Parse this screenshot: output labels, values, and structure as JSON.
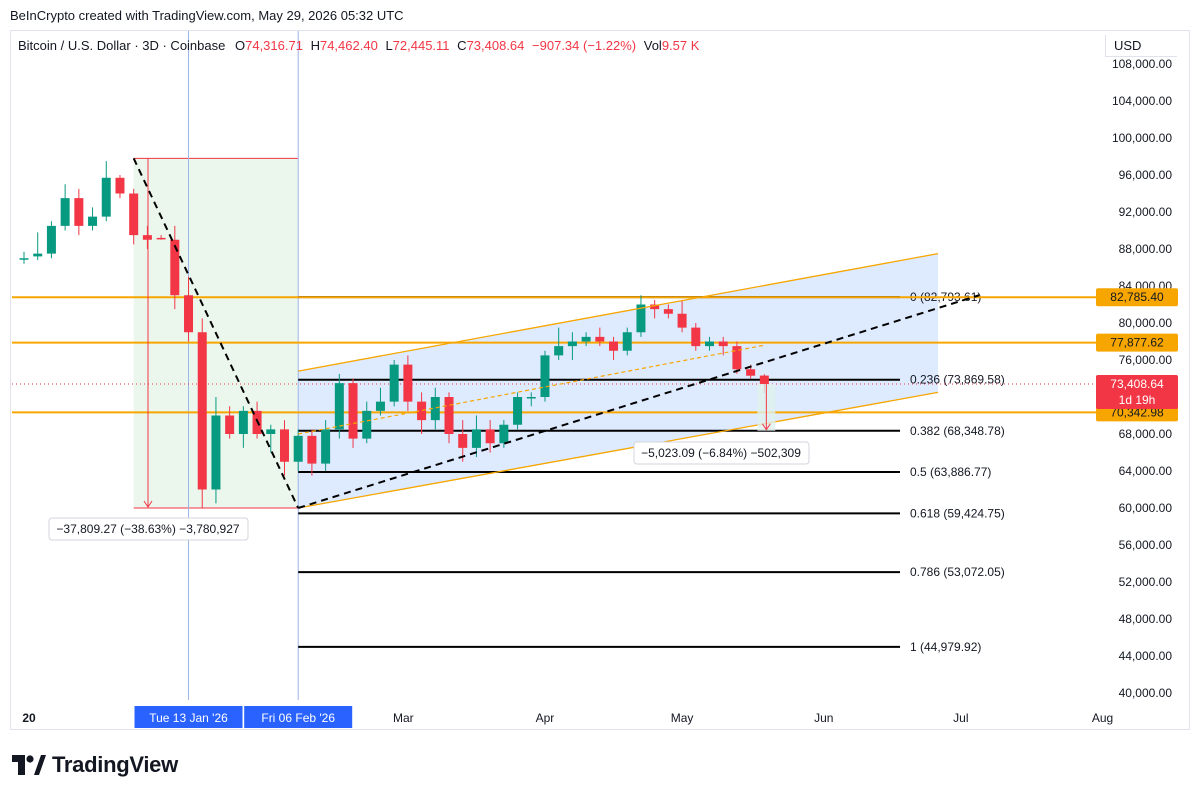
{
  "header": {
    "credit": "BeInCrypto created with TradingView.com, May 29, 2026 05:32 UTC",
    "symbol": "Bitcoin / U.S. Dollar · 3D · Coinbase",
    "o_label": "O",
    "o_value": "74,316.71",
    "h_label": "H",
    "h_value": "74,462.40",
    "l_label": "L",
    "l_value": "72,445.11",
    "c_label": "C",
    "c_value": "73,408.64",
    "change": "−907.34 (−1.22%)",
    "vol_label": "Vol",
    "vol_value": "9.57 K",
    "currency": "USD"
  },
  "footer": {
    "brand": "TradingView",
    "logo_icon": "tradingview-logo-icon"
  },
  "colors": {
    "up": "#089981",
    "down": "#f23645",
    "orange": "#f7a600",
    "channel_fill": "#d3e3fd",
    "box_fill": "#e3f3e6",
    "label_blue": "#2962ff"
  },
  "chart_data": {
    "type": "candlestick",
    "y_axis": {
      "min": 38000,
      "max": 110000,
      "ticks": [
        "40,000.00",
        "44,000.00",
        "48,000.00",
        "52,000.00",
        "56,000.00",
        "60,000.00",
        "64,000.00",
        "68,000.00",
        "72,000.00",
        "76,000.00",
        "80,000.00",
        "84,000.00",
        "88,000.00",
        "92,000.00",
        "96,000.00",
        "100,000.00",
        "104,000.00",
        "108,000.00"
      ],
      "tick_values": [
        40000,
        44000,
        48000,
        52000,
        56000,
        60000,
        64000,
        68000,
        72000,
        76000,
        80000,
        84000,
        88000,
        92000,
        96000,
        100000,
        104000,
        108000
      ]
    },
    "x_axis": {
      "labels": [
        "20",
        "Mar",
        "Apr",
        "May",
        "Jun",
        "Jul",
        "Aug"
      ],
      "label_dates": [
        "2026-01-01",
        "2026-03-01",
        "2026-04-01",
        "2026-05-01",
        "2026-06-01",
        "2026-07-01",
        "2026-08-01"
      ],
      "highlight": [
        "Tue 13 Jan '26",
        "Fri 06 Feb '26"
      ],
      "highlight_dates": [
        "2026-01-13",
        "2026-02-06"
      ]
    },
    "candles": [
      {
        "date": "2025-12-08",
        "o": 87000,
        "h": 87700,
        "l": 86400,
        "c": 87000
      },
      {
        "date": "2025-12-11",
        "o": 87200,
        "h": 89800,
        "l": 86800,
        "c": 87500
      },
      {
        "date": "2025-12-14",
        "o": 87500,
        "h": 91000,
        "l": 87000,
        "c": 90500
      },
      {
        "date": "2025-12-17",
        "o": 90500,
        "h": 95000,
        "l": 90000,
        "c": 93500
      },
      {
        "date": "2025-12-20",
        "o": 93500,
        "h": 94500,
        "l": 89500,
        "c": 90500
      },
      {
        "date": "2025-12-23",
        "o": 90500,
        "h": 92500,
        "l": 90000,
        "c": 91500
      },
      {
        "date": "2025-12-26",
        "o": 91500,
        "h": 97500,
        "l": 91000,
        "c": 95700
      },
      {
        "date": "2025-12-29",
        "o": 95700,
        "h": 96000,
        "l": 93500,
        "c": 94000
      },
      {
        "date": "2026-01-01",
        "o": 94000,
        "h": 94500,
        "l": 88500,
        "c": 89500
      },
      {
        "date": "2026-01-04",
        "o": 89500,
        "h": 90500,
        "l": 88000,
        "c": 89000
      },
      {
        "date": "2026-01-07",
        "o": 89200,
        "h": 89500,
        "l": 89000,
        "c": 89100
      },
      {
        "date": "2026-01-10",
        "o": 89000,
        "h": 90500,
        "l": 81500,
        "c": 83000
      },
      {
        "date": "2026-01-13",
        "o": 83000,
        "h": 85000,
        "l": 78000,
        "c": 79000
      },
      {
        "date": "2026-01-16",
        "o": 79000,
        "h": 80500,
        "l": 60000,
        "c": 62000
      },
      {
        "date": "2026-01-19",
        "o": 62000,
        "h": 72000,
        "l": 60500,
        "c": 70000
      },
      {
        "date": "2026-01-22",
        "o": 70000,
        "h": 71000,
        "l": 67500,
        "c": 68000
      },
      {
        "date": "2026-01-25",
        "o": 68000,
        "h": 71000,
        "l": 66500,
        "c": 70500
      },
      {
        "date": "2026-01-28",
        "o": 70500,
        "h": 71500,
        "l": 67500,
        "c": 68000
      },
      {
        "date": "2026-01-31",
        "o": 68000,
        "h": 69000,
        "l": 66000,
        "c": 68500
      },
      {
        "date": "2026-02-03",
        "o": 68500,
        "h": 69500,
        "l": 63500,
        "c": 65000
      },
      {
        "date": "2026-02-06",
        "o": 65000,
        "h": 68500,
        "l": 64000,
        "c": 67800
      },
      {
        "date": "2026-02-09",
        "o": 67800,
        "h": 68500,
        "l": 63500,
        "c": 64800
      },
      {
        "date": "2026-02-12",
        "o": 64800,
        "h": 69500,
        "l": 64000,
        "c": 68500
      },
      {
        "date": "2026-02-15",
        "o": 68500,
        "h": 74500,
        "l": 67500,
        "c": 73500
      },
      {
        "date": "2026-02-18",
        "o": 73500,
        "h": 74000,
        "l": 66500,
        "c": 67500
      },
      {
        "date": "2026-02-21",
        "o": 67500,
        "h": 71500,
        "l": 67000,
        "c": 70500
      },
      {
        "date": "2026-02-24",
        "o": 70500,
        "h": 73000,
        "l": 70000,
        "c": 71500
      },
      {
        "date": "2026-02-27",
        "o": 71500,
        "h": 76000,
        "l": 71000,
        "c": 75500
      },
      {
        "date": "2026-03-02",
        "o": 75500,
        "h": 76500,
        "l": 70500,
        "c": 71500
      },
      {
        "date": "2026-03-05",
        "o": 71500,
        "h": 72500,
        "l": 68000,
        "c": 69500
      },
      {
        "date": "2026-03-08",
        "o": 69500,
        "h": 73000,
        "l": 68500,
        "c": 72000
      },
      {
        "date": "2026-03-11",
        "o": 72000,
        "h": 72500,
        "l": 67000,
        "c": 68000
      },
      {
        "date": "2026-03-14",
        "o": 68000,
        "h": 69500,
        "l": 65000,
        "c": 66500
      },
      {
        "date": "2026-03-17",
        "o": 66500,
        "h": 70000,
        "l": 65500,
        "c": 68500
      },
      {
        "date": "2026-03-20",
        "o": 68500,
        "h": 69500,
        "l": 66000,
        "c": 67000
      },
      {
        "date": "2026-03-23",
        "o": 67000,
        "h": 69500,
        "l": 66500,
        "c": 69000
      },
      {
        "date": "2026-03-26",
        "o": 69000,
        "h": 72500,
        "l": 68500,
        "c": 72000
      },
      {
        "date": "2026-03-29",
        "o": 72000,
        "h": 72500,
        "l": 71000,
        "c": 72000
      },
      {
        "date": "2026-04-01",
        "o": 72000,
        "h": 77000,
        "l": 71500,
        "c": 76500
      },
      {
        "date": "2026-04-04",
        "o": 76500,
        "h": 79500,
        "l": 76000,
        "c": 77500
      },
      {
        "date": "2026-04-07",
        "o": 77500,
        "h": 79000,
        "l": 76000,
        "c": 78000
      },
      {
        "date": "2026-04-10",
        "o": 78000,
        "h": 79000,
        "l": 77500,
        "c": 78500
      },
      {
        "date": "2026-04-13",
        "o": 78500,
        "h": 79500,
        "l": 77500,
        "c": 78000
      },
      {
        "date": "2026-04-16",
        "o": 78000,
        "h": 78500,
        "l": 76000,
        "c": 77000
      },
      {
        "date": "2026-04-19",
        "o": 77000,
        "h": 79500,
        "l": 76500,
        "c": 79000
      },
      {
        "date": "2026-04-22",
        "o": 79000,
        "h": 83000,
        "l": 78500,
        "c": 82000
      },
      {
        "date": "2026-04-25",
        "o": 82000,
        "h": 82500,
        "l": 80500,
        "c": 81500
      },
      {
        "date": "2026-04-28",
        "o": 81500,
        "h": 82000,
        "l": 80500,
        "c": 81000
      },
      {
        "date": "2026-05-01",
        "o": 81000,
        "h": 82500,
        "l": 79000,
        "c": 79500
      },
      {
        "date": "2026-05-04",
        "o": 79500,
        "h": 80000,
        "l": 77000,
        "c": 77500
      },
      {
        "date": "2026-05-07",
        "o": 77500,
        "h": 78500,
        "l": 77000,
        "c": 78000
      },
      {
        "date": "2026-05-10",
        "o": 78000,
        "h": 78500,
        "l": 76500,
        "c": 77500
      },
      {
        "date": "2026-05-13",
        "o": 77500,
        "h": 78000,
        "l": 74500,
        "c": 75000
      },
      {
        "date": "2026-05-16",
        "o": 75000,
        "h": 75500,
        "l": 74000,
        "c": 74300
      },
      {
        "date": "2026-05-19",
        "o": 74316.71,
        "h": 74462.4,
        "l": 72445.11,
        "c": 73408.64
      }
    ],
    "fib_levels": [
      {
        "label": "0 (82,793.61)",
        "value": 82793.61
      },
      {
        "label": "0.236 (73,869.58)",
        "value": 73869.58
      },
      {
        "label": "0.382 (68,348.78)",
        "value": 68348.78
      },
      {
        "label": "0.5 (63,886.77)",
        "value": 63886.77
      },
      {
        "label": "0.618 (59,424.75)",
        "value": 59424.75
      },
      {
        "label": "0.786 (53,072.05)",
        "value": 53072.05
      },
      {
        "label": "1 (44,979.92)",
        "value": 44979.92
      }
    ],
    "horizontal_levels": [
      {
        "label": "82,785.40",
        "value": 82785.4
      },
      {
        "label": "77,877.62",
        "value": 77877.62
      },
      {
        "label": "70,342.98",
        "value": 70342.98
      }
    ],
    "last_price": {
      "label": "73,408.64",
      "countdown": "1d 19h",
      "value": 73408.64
    },
    "channel": {
      "start_date": "2026-02-06",
      "end_date": "2026-06-26",
      "upper": [
        74800,
        87500
      ],
      "lower": [
        60000,
        72500
      ]
    },
    "trendline": {
      "start_date": "2026-02-06",
      "end_date": "2026-07-05",
      "values": [
        60000,
        83000
      ]
    },
    "midline": {
      "start_date": "2026-02-06",
      "end_date": "2026-05-19",
      "values": [
        68000,
        77600
      ]
    },
    "drop_line": {
      "start_date": "2026-01-01",
      "end_date": "2026-02-06",
      "values": [
        97800,
        60000
      ]
    },
    "measure_drop": {
      "start_date": "2026-01-01",
      "end_date": "2026-02-06",
      "top": 97800,
      "bottom": 60000,
      "label": "−37,809.27 (−38.63%) −3,780,927"
    },
    "measure_recent": {
      "date": "2026-05-19",
      "top": 73400,
      "bottom": 68350,
      "label": "−5,023.09 (−6.84%) −502,309"
    }
  }
}
